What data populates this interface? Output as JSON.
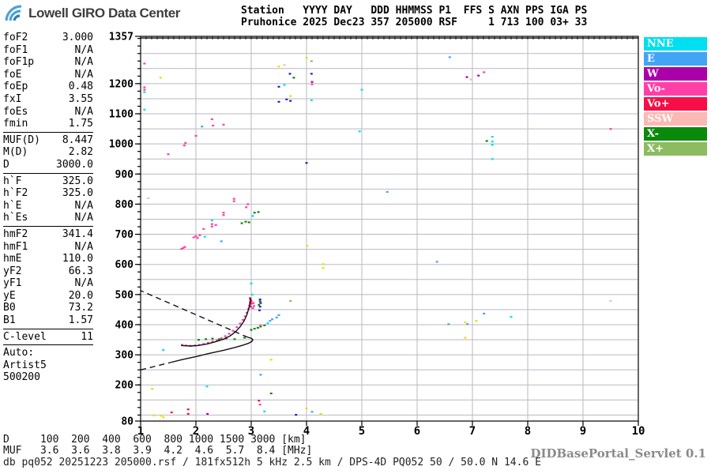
{
  "logo": {
    "text": "Lowell GIRO Data Center"
  },
  "header": {
    "line1": "Station   YYYY DAY   DDD HHMMSS P1  FFS S AXN PPS IGA PS",
    "line2": "Pruhonice 2025 Dec23 357 205000 RSF     1 713 100 03+ 33"
  },
  "params": {
    "groups": [
      {
        "rows": [
          [
            "foF2",
            "3.000"
          ],
          [
            "foF1",
            "N/A"
          ],
          [
            "foF1p",
            "N/A"
          ],
          [
            "foE",
            "N/A"
          ],
          [
            "foEp",
            "0.48"
          ],
          [
            "fxI",
            "3.55"
          ],
          [
            "foEs",
            "N/A"
          ],
          [
            "fmin",
            "1.75"
          ]
        ]
      },
      {
        "rows": [
          [
            "MUF(D)",
            "8.447"
          ],
          [
            "M(D)",
            "2.82"
          ],
          [
            "D",
            "3000.0"
          ]
        ]
      },
      {
        "rows": [
          [
            "h`F",
            "325.0"
          ],
          [
            "h`F2",
            "325.0"
          ],
          [
            "h`E",
            "N/A"
          ],
          [
            "h`Es",
            "N/A"
          ]
        ]
      },
      {
        "rows": [
          [
            "hmF2",
            "341.4"
          ],
          [
            "hmF1",
            "N/A"
          ],
          [
            "hmE",
            "110.0"
          ],
          [
            "yF2",
            "66.3"
          ],
          [
            "yF1",
            "N/A"
          ],
          [
            "yE",
            "20.0"
          ],
          [
            "B0",
            "73.2"
          ],
          [
            "B1",
            "1.57"
          ]
        ]
      },
      {
        "rows": [
          [
            "C-level",
            "11"
          ]
        ]
      },
      {
        "rows": [
          [
            "Auto:",
            ""
          ],
          [
            "Artist5",
            ""
          ],
          [
            "500200",
            ""
          ]
        ]
      }
    ]
  },
  "legend": {
    "items": [
      {
        "label": "NNE",
        "key": "nne"
      },
      {
        "label": "E",
        "key": "e"
      },
      {
        "label": "W",
        "key": "w"
      },
      {
        "label": "Vo-",
        "key": "vo-"
      },
      {
        "label": "Vo+",
        "key": "vo+"
      },
      {
        "label": "SSW",
        "key": "ssw"
      },
      {
        "label": "X-",
        "key": "x-"
      },
      {
        "label": "X+",
        "key": "x+"
      }
    ]
  },
  "footer": {
    "d_line": "D     100  200  400  600  800 1000 1500 3000 [km]",
    "muf_line": "MUF   3.6  3.6  3.8  3.9  4.2  4.6  5.7  8.4 [MHz]",
    "info": "db pq052 20251223 205000.rsf / 181fx512h 5 kHz 2.5 km / DPS-4D PQ052 50 / 50.0 N 14.6 E",
    "servlet": "DIDBasePortal_Servlet 0.1"
  },
  "chart_data": {
    "type": "scatter",
    "xlim": [
      1,
      10
    ],
    "ylim": [
      80,
      1357
    ],
    "x_ticks": [
      1,
      2,
      3,
      4,
      5,
      6,
      7,
      8,
      9,
      10
    ],
    "y_tick_labels": [
      [
        1357,
        "1357"
      ],
      [
        1200,
        "1200"
      ],
      [
        1100,
        "1100"
      ],
      [
        1000,
        "1000"
      ],
      [
        900,
        "900"
      ],
      [
        800,
        "800"
      ],
      [
        700,
        "700"
      ],
      [
        600,
        "600"
      ],
      [
        500,
        "500"
      ],
      [
        400,
        "400"
      ],
      [
        300,
        "300"
      ],
      [
        200,
        "200"
      ],
      [
        80,
        "80"
      ]
    ],
    "grid": {
      "x_step": 1,
      "y_step": 50,
      "y_minor_tick": 25,
      "x_minor_tick": 0.1
    },
    "palette": {
      "nne": "#00dff0",
      "e": "#41a4f5",
      "w": "#aa00aa",
      "vo-": "#ff3fa6",
      "vo+": "#f50f46",
      "ssw": "#fbb8b4",
      "x-": "#0a8a0a",
      "x+": "#8cbb60",
      "yellow": "#e2e204",
      "navy": "#2222cc"
    },
    "points": [
      [
        1.07,
        1267,
        "vo-"
      ],
      [
        1.36,
        1220,
        "yellow"
      ],
      [
        1.07,
        1188,
        "vo-"
      ],
      [
        1.07,
        1180,
        "vo-"
      ],
      [
        1.07,
        1172,
        "nne"
      ],
      [
        1.07,
        1114,
        "nne"
      ],
      [
        1.5,
        966,
        "vo-"
      ],
      [
        1.79,
        995,
        "vo-"
      ],
      [
        1.81,
        1003,
        "vo-"
      ],
      [
        2.0,
        1027,
        "vo-"
      ],
      [
        2.29,
        1082,
        "vo-"
      ],
      [
        2.31,
        1061,
        "vo-"
      ],
      [
        2.5,
        1064,
        "vo-"
      ],
      [
        2.11,
        1058,
        "e"
      ],
      [
        3.5,
        1257,
        "yellow"
      ],
      [
        3.6,
        1262,
        "ssw"
      ],
      [
        3.7,
        1233,
        "navy"
      ],
      [
        3.77,
        1220,
        "x-"
      ],
      [
        3.5,
        1190,
        "navy"
      ],
      [
        3.6,
        1196,
        "nne"
      ],
      [
        3.71,
        1159,
        "yellow"
      ],
      [
        3.5,
        1140,
        "navy"
      ],
      [
        3.64,
        1148,
        "navy"
      ],
      [
        3.71,
        1143,
        "navy"
      ],
      [
        4.0,
        1286,
        "yellow"
      ],
      [
        4.09,
        1275,
        "x+"
      ],
      [
        4.09,
        1233,
        "navy"
      ],
      [
        4.1,
        1206,
        "w"
      ],
      [
        4.1,
        1198,
        "vo-"
      ],
      [
        4.09,
        1145,
        "nne"
      ],
      [
        5.0,
        1180,
        "nne"
      ],
      [
        4.96,
        1042,
        "nne"
      ],
      [
        6.59,
        1288,
        "e"
      ],
      [
        6.9,
        1222,
        "w"
      ],
      [
        7.11,
        1227,
        "w"
      ],
      [
        7.21,
        1238,
        "vo-"
      ],
      [
        6.97,
        1214,
        "ssw"
      ],
      [
        7.36,
        1024,
        "nne"
      ],
      [
        7.36,
        1008,
        "nne"
      ],
      [
        7.36,
        997,
        "nne"
      ],
      [
        7.36,
        950,
        "nne"
      ],
      [
        7.26,
        1010,
        "x-"
      ],
      [
        9.5,
        1050,
        "vo-"
      ],
      [
        4.0,
        937,
        "navy"
      ],
      [
        5.46,
        841,
        "e"
      ],
      [
        1.14,
        820,
        "ssw"
      ],
      [
        1.74,
        652,
        "vo-"
      ],
      [
        1.77,
        655,
        "vo-"
      ],
      [
        1.8,
        658,
        "vo-"
      ],
      [
        1.96,
        690,
        "vo-"
      ],
      [
        2.0,
        694,
        "vo-"
      ],
      [
        2.03,
        688,
        "vo-"
      ],
      [
        2.07,
        697,
        "vo-"
      ],
      [
        2.14,
        718,
        "vo-"
      ],
      [
        2.16,
        692,
        "nne"
      ],
      [
        2.29,
        726,
        "vo-"
      ],
      [
        2.29,
        734,
        "vo-"
      ],
      [
        2.36,
        731,
        "vo-"
      ],
      [
        2.46,
        677,
        "e"
      ],
      [
        2.29,
        746,
        "nne"
      ],
      [
        2.5,
        764,
        "vo-"
      ],
      [
        2.5,
        772,
        "vo-"
      ],
      [
        2.69,
        810,
        "vo-"
      ],
      [
        2.69,
        818,
        "vo-"
      ],
      [
        2.91,
        790,
        "vo-"
      ],
      [
        2.94,
        800,
        "vo-"
      ],
      [
        2.83,
        737,
        "x-"
      ],
      [
        2.9,
        742,
        "x-"
      ],
      [
        2.96,
        740,
        "x-"
      ],
      [
        3.03,
        761,
        "nne"
      ],
      [
        3.06,
        772,
        "x-"
      ],
      [
        3.13,
        774,
        "x-"
      ],
      [
        6.36,
        609,
        "e"
      ],
      [
        4.01,
        662,
        "yellow"
      ],
      [
        4.3,
        601,
        "yellow"
      ],
      [
        4.3,
        588,
        "yellow"
      ],
      [
        9.5,
        479,
        "ssw"
      ],
      [
        7.21,
        437,
        "e"
      ],
      [
        7.7,
        426,
        "nne"
      ],
      [
        7.07,
        413,
        "yellow"
      ],
      [
        6.87,
        408,
        "yellow"
      ],
      [
        6.57,
        402,
        "e"
      ],
      [
        6.91,
        402,
        "e"
      ],
      [
        6.87,
        357,
        "yellow"
      ],
      [
        1.75,
        333,
        "vo-"
      ],
      [
        1.82,
        331,
        "vo-"
      ],
      [
        1.9,
        330,
        "vo-"
      ],
      [
        1.98,
        331,
        "vo-"
      ],
      [
        2.06,
        333,
        "vo-"
      ],
      [
        2.14,
        336,
        "vo-"
      ],
      [
        2.22,
        340,
        "vo-"
      ],
      [
        2.3,
        344,
        "vo-"
      ],
      [
        2.38,
        349,
        "vo-"
      ],
      [
        2.46,
        355,
        "vo-"
      ],
      [
        2.53,
        362,
        "vo-"
      ],
      [
        2.6,
        370,
        "vo-"
      ],
      [
        2.67,
        380,
        "vo-"
      ],
      [
        2.74,
        392,
        "vo-"
      ],
      [
        2.8,
        404,
        "vo-"
      ],
      [
        2.85,
        416,
        "vo-"
      ],
      [
        2.89,
        428,
        "vo-"
      ],
      [
        2.92,
        440,
        "vo-"
      ],
      [
        2.95,
        452,
        "vo-"
      ],
      [
        2.97,
        464,
        "vo-"
      ],
      [
        2.98,
        474,
        "vo-"
      ],
      [
        2.99,
        484,
        "vo-"
      ],
      [
        2.99,
        460,
        "vo+"
      ],
      [
        3.0,
        470,
        "vo+"
      ],
      [
        3.0,
        478,
        "vo+"
      ],
      [
        2.98,
        488,
        "vo+"
      ],
      [
        3.03,
        455,
        "vo-"
      ],
      [
        3.05,
        462,
        "vo-"
      ],
      [
        3.04,
        472,
        "vo-"
      ],
      [
        3.15,
        448,
        "navy"
      ],
      [
        3.16,
        460,
        "navy"
      ],
      [
        3.17,
        472,
        "navy"
      ],
      [
        3.16,
        484,
        "navy"
      ],
      [
        3.14,
        466,
        "x-"
      ],
      [
        3.16,
        478,
        "x-"
      ],
      [
        3.0,
        537,
        "nne"
      ],
      [
        3.02,
        500,
        "nne"
      ],
      [
        2.05,
        350,
        "x-"
      ],
      [
        2.18,
        352,
        "x-"
      ],
      [
        2.3,
        354,
        "x-"
      ],
      [
        2.42,
        352,
        "x-"
      ],
      [
        2.55,
        355,
        "x-"
      ],
      [
        2.7,
        352,
        "x-"
      ],
      [
        2.88,
        357,
        "x-"
      ],
      [
        3.0,
        383,
        "x-"
      ],
      [
        3.06,
        387,
        "x-"
      ],
      [
        3.12,
        390,
        "x-"
      ],
      [
        3.17,
        394,
        "x-"
      ],
      [
        3.24,
        398,
        "x-"
      ],
      [
        3.17,
        398,
        "vo-"
      ],
      [
        3.3,
        405,
        "nne"
      ],
      [
        3.34,
        413,
        "e"
      ],
      [
        3.38,
        418,
        "e"
      ],
      [
        3.46,
        424,
        "e"
      ],
      [
        3.5,
        432,
        "e"
      ],
      [
        3.71,
        479,
        "x+"
      ],
      [
        1.41,
        316,
        "nne"
      ],
      [
        1.21,
        187,
        "yellow"
      ],
      [
        3.36,
        284,
        "yellow"
      ],
      [
        3.17,
        234,
        "e"
      ],
      [
        2.2,
        195,
        "nne"
      ],
      [
        3.36,
        172,
        "x-"
      ],
      [
        3.14,
        148,
        "vo+"
      ],
      [
        3.16,
        135,
        "vo-"
      ],
      [
        1.86,
        119,
        "vo+"
      ],
      [
        1.86,
        104,
        "vo+"
      ],
      [
        1.56,
        109,
        "vo+"
      ],
      [
        2.21,
        104,
        "w"
      ],
      [
        1.24,
        99,
        "yellow"
      ],
      [
        1.37,
        98,
        "yellow"
      ],
      [
        1.41,
        93,
        "yellow"
      ],
      [
        4.0,
        122,
        "yellow"
      ],
      [
        4.1,
        111,
        "e"
      ],
      [
        3.24,
        112,
        "nne"
      ],
      [
        3.81,
        101,
        "navy"
      ],
      [
        4.26,
        104,
        "yellow"
      ]
    ],
    "curves": [
      {
        "name": "f-trace",
        "style": "solid",
        "points": [
          [
            1.73,
            331
          ],
          [
            1.9,
            329
          ],
          [
            2.05,
            331
          ],
          [
            2.2,
            336
          ],
          [
            2.35,
            343
          ],
          [
            2.5,
            352
          ],
          [
            2.62,
            363
          ],
          [
            2.72,
            377
          ],
          [
            2.8,
            393
          ],
          [
            2.87,
            412
          ],
          [
            2.92,
            432
          ],
          [
            2.95,
            450
          ],
          [
            2.97,
            464
          ],
          [
            2.99,
            488
          ]
        ]
      },
      {
        "name": "true-height-profile",
        "style": "solid",
        "points": [
          [
            1.53,
            274
          ],
          [
            1.75,
            284
          ],
          [
            2.0,
            294
          ],
          [
            2.25,
            305
          ],
          [
            2.5,
            315
          ],
          [
            2.7,
            324
          ],
          [
            2.85,
            332
          ],
          [
            2.95,
            338
          ],
          [
            3.01,
            344
          ],
          [
            3.03,
            350
          ],
          [
            3.0,
            355
          ],
          [
            2.94,
            358
          ]
        ]
      },
      {
        "name": "profile-extrapolation-bottom",
        "style": "dashed",
        "points": [
          [
            1.0,
            250
          ],
          [
            1.53,
            274
          ]
        ]
      },
      {
        "name": "profile-extrapolation-top",
        "style": "dashed",
        "points": [
          [
            2.94,
            358
          ],
          [
            1.0,
            513
          ]
        ]
      }
    ]
  }
}
